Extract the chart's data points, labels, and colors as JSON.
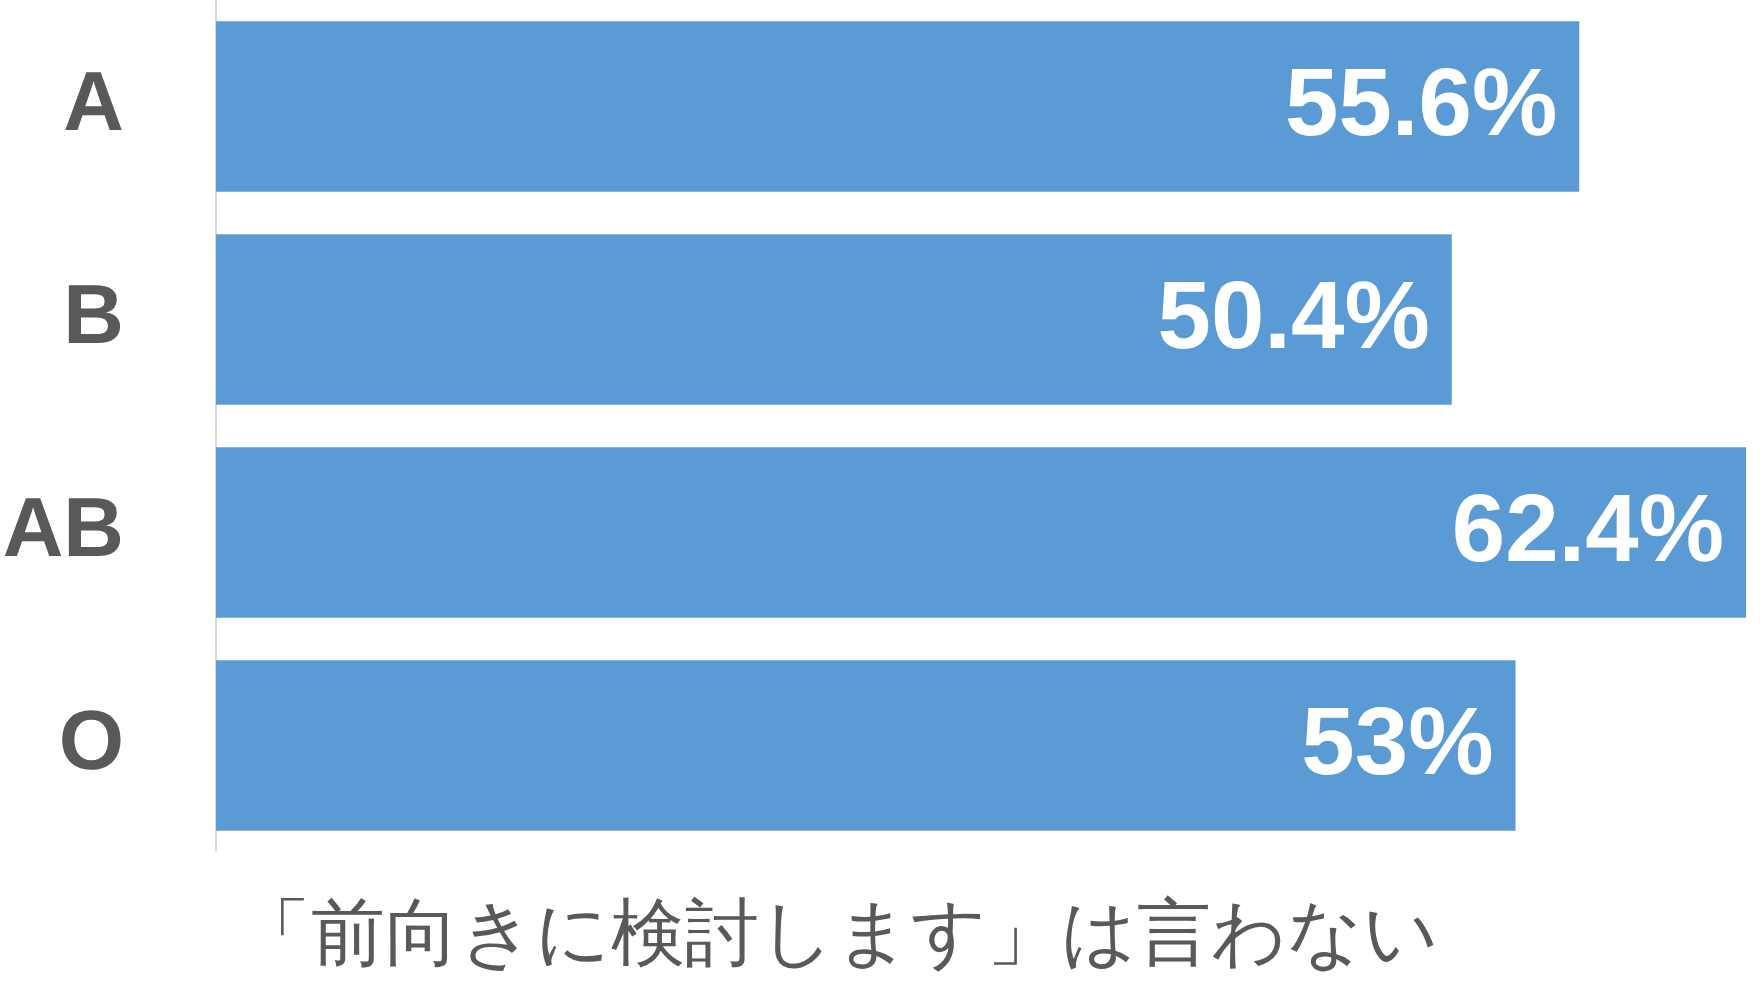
{
  "chart_data": {
    "type": "bar",
    "orientation": "horizontal",
    "title": "「前向きに検討します」は言わない",
    "categories": [
      "A",
      "B",
      "AB",
      "O"
    ],
    "values": [
      55.6,
      50.4,
      62.4,
      53
    ],
    "value_labels": [
      "55.6%",
      "50.4%",
      "62.4%",
      "53%"
    ],
    "color": "#5b9bd5",
    "tick_labels": "y"
  }
}
